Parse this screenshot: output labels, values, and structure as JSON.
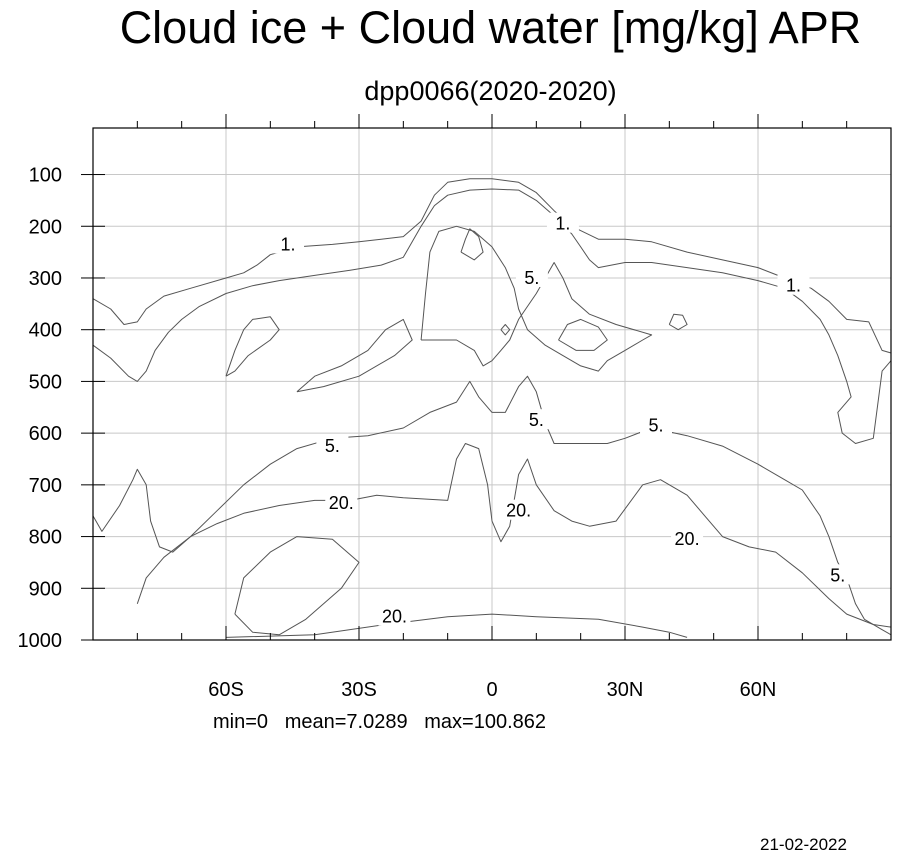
{
  "title": "Cloud ice + Cloud water [mg/kg] APR",
  "subtitle": "dpp0066(2020-2020)",
  "stats": "min=0   mean=7.0289   max=100.862",
  "date": "21-02-2022",
  "colors": {
    "axis": "#000000",
    "grid": "#c8c8c8",
    "contour": "#555555"
  },
  "chart_data": {
    "type": "contour",
    "title": "Cloud ice + Cloud water [mg/kg] APR",
    "subtitle": "dpp0066(2020-2020)",
    "xlabel": "",
    "ylabel": "",
    "x_range": [
      -90,
      90
    ],
    "y_range": [
      1000,
      10
    ],
    "y_axis_reversed": true,
    "grid": true,
    "x_ticks": [
      {
        "value": -60,
        "label": "60S"
      },
      {
        "value": -30,
        "label": "30S"
      },
      {
        "value": 0,
        "label": "0"
      },
      {
        "value": 30,
        "label": "30N"
      },
      {
        "value": 60,
        "label": "60N"
      }
    ],
    "x_minor_ticks": [
      -80,
      -70,
      -50,
      -40,
      -20,
      -10,
      10,
      20,
      40,
      50,
      70,
      80
    ],
    "y_ticks": [
      {
        "value": 100,
        "label": "100"
      },
      {
        "value": 200,
        "label": "200"
      },
      {
        "value": 300,
        "label": "300"
      },
      {
        "value": 400,
        "label": "400"
      },
      {
        "value": 500,
        "label": "500"
      },
      {
        "value": 600,
        "label": "600"
      },
      {
        "value": 700,
        "label": "700"
      },
      {
        "value": 800,
        "label": "800"
      },
      {
        "value": 900,
        "label": "900"
      },
      {
        "value": 1000,
        "label": "1000"
      }
    ],
    "contour_labels": [
      {
        "text": "1.",
        "x": -46,
        "y": 235
      },
      {
        "text": "1.",
        "x": 16,
        "y": 195
      },
      {
        "text": "1.",
        "x": 68,
        "y": 315
      },
      {
        "text": "5.",
        "x": 9,
        "y": 300
      },
      {
        "text": "5.",
        "x": -36,
        "y": 625
      },
      {
        "text": "5.",
        "x": 10,
        "y": 575
      },
      {
        "text": "5.",
        "x": 37,
        "y": 585
      },
      {
        "text": "5.",
        "x": 78,
        "y": 875
      },
      {
        "text": "20.",
        "x": -34,
        "y": 735
      },
      {
        "text": "20.",
        "x": 6,
        "y": 750
      },
      {
        "text": "20.",
        "x": 44,
        "y": 805
      },
      {
        "text": "20.",
        "x": -22,
        "y": 955
      }
    ],
    "contours": [
      {
        "level": 1,
        "points": [
          [
            -90,
            340
          ],
          [
            -86,
            360
          ],
          [
            -83,
            390
          ],
          [
            -80,
            385
          ],
          [
            -78,
            360
          ],
          [
            -74,
            335
          ],
          [
            -68,
            320
          ],
          [
            -60,
            300
          ],
          [
            -56,
            290
          ],
          [
            -53,
            275
          ],
          [
            -50,
            255
          ],
          [
            -44,
            240
          ],
          [
            -36,
            235
          ],
          [
            -30,
            230
          ],
          [
            -25,
            225
          ],
          [
            -20,
            220
          ],
          [
            -16,
            190
          ],
          [
            -13,
            140
          ],
          [
            -10,
            115
          ],
          [
            -5,
            108
          ],
          [
            0,
            108
          ],
          [
            6,
            115
          ],
          [
            10,
            135
          ],
          [
            14,
            170
          ],
          [
            18,
            200
          ],
          [
            24,
            225
          ],
          [
            30,
            225
          ],
          [
            36,
            230
          ],
          [
            44,
            250
          ],
          [
            52,
            265
          ],
          [
            60,
            280
          ],
          [
            66,
            300
          ],
          [
            72,
            320
          ],
          [
            76,
            345
          ],
          [
            80,
            380
          ],
          [
            85,
            385
          ],
          [
            88,
            440
          ],
          [
            90,
            445
          ]
        ]
      },
      {
        "level": 1,
        "points": [
          [
            -90,
            430
          ],
          [
            -86,
            455
          ],
          [
            -82,
            490
          ],
          [
            -80,
            500
          ],
          [
            -78,
            480
          ],
          [
            -76,
            440
          ],
          [
            -73,
            405
          ],
          [
            -70,
            380
          ],
          [
            -66,
            355
          ],
          [
            -60,
            330
          ],
          [
            -54,
            315
          ],
          [
            -48,
            305
          ],
          [
            -40,
            295
          ],
          [
            -32,
            285
          ],
          [
            -25,
            275
          ],
          [
            -20,
            260
          ],
          [
            -18,
            230
          ],
          [
            -16,
            200
          ],
          [
            -13,
            160
          ],
          [
            -10,
            140
          ],
          [
            -5,
            130
          ],
          [
            0,
            128
          ],
          [
            6,
            130
          ],
          [
            10,
            150
          ],
          [
            14,
            180
          ],
          [
            18,
            215
          ],
          [
            20,
            240
          ],
          [
            22,
            265
          ],
          [
            24,
            280
          ],
          [
            30,
            270
          ],
          [
            36,
            270
          ],
          [
            44,
            280
          ],
          [
            52,
            290
          ],
          [
            60,
            305
          ],
          [
            66,
            320
          ],
          [
            70,
            345
          ],
          [
            74,
            380
          ],
          [
            76,
            410
          ],
          [
            78,
            450
          ],
          [
            80,
            500
          ],
          [
            81,
            530
          ],
          [
            78,
            560
          ],
          [
            79,
            600
          ],
          [
            82,
            620
          ],
          [
            86,
            610
          ],
          [
            88,
            480
          ],
          [
            90,
            460
          ]
        ]
      },
      {
        "level": 5,
        "points": [
          [
            -90,
            760
          ],
          [
            -88,
            790
          ],
          [
            -84,
            740
          ],
          [
            -81,
            690
          ],
          [
            -80,
            670
          ],
          [
            -78,
            700
          ],
          [
            -77,
            770
          ],
          [
            -75,
            820
          ],
          [
            -72,
            830
          ],
          [
            -68,
            800
          ],
          [
            -62,
            750
          ],
          [
            -56,
            700
          ],
          [
            -50,
            660
          ],
          [
            -44,
            630
          ],
          [
            -36,
            610
          ],
          [
            -28,
            605
          ],
          [
            -20,
            590
          ],
          [
            -14,
            560
          ],
          [
            -8,
            540
          ],
          [
            -5,
            500
          ],
          [
            -3,
            530
          ],
          [
            0,
            560
          ],
          [
            3,
            560
          ],
          [
            6,
            510
          ],
          [
            8,
            490
          ],
          [
            10,
            520
          ],
          [
            12,
            580
          ],
          [
            14,
            620
          ],
          [
            18,
            620
          ],
          [
            22,
            620
          ],
          [
            26,
            620
          ],
          [
            30,
            610
          ],
          [
            36,
            590
          ],
          [
            44,
            605
          ],
          [
            52,
            625
          ],
          [
            60,
            660
          ],
          [
            66,
            690
          ],
          [
            70,
            710
          ],
          [
            74,
            760
          ],
          [
            76,
            800
          ],
          [
            78,
            850
          ],
          [
            80,
            880
          ],
          [
            82,
            930
          ],
          [
            84,
            960
          ],
          [
            88,
            980
          ],
          [
            90,
            990
          ]
        ]
      },
      {
        "level": 20,
        "points": [
          [
            -80,
            930
          ],
          [
            -78,
            880
          ],
          [
            -74,
            840
          ],
          [
            -68,
            800
          ],
          [
            -62,
            775
          ],
          [
            -56,
            755
          ],
          [
            -48,
            740
          ],
          [
            -40,
            730
          ],
          [
            -32,
            730
          ],
          [
            -26,
            720
          ],
          [
            -20,
            725
          ],
          [
            -10,
            730
          ],
          [
            -8,
            650
          ],
          [
            -6,
            620
          ],
          [
            -3,
            630
          ],
          [
            -1,
            700
          ],
          [
            0,
            770
          ],
          [
            2,
            810
          ],
          [
            4,
            780
          ],
          [
            6,
            680
          ],
          [
            8,
            650
          ],
          [
            10,
            700
          ],
          [
            14,
            750
          ],
          [
            18,
            770
          ],
          [
            22,
            780
          ],
          [
            28,
            770
          ],
          [
            34,
            700
          ],
          [
            38,
            690
          ],
          [
            44,
            720
          ],
          [
            48,
            760
          ],
          [
            52,
            800
          ],
          [
            58,
            820
          ],
          [
            64,
            830
          ],
          [
            70,
            870
          ],
          [
            76,
            920
          ],
          [
            80,
            950
          ],
          [
            86,
            970
          ],
          [
            90,
            975
          ]
        ]
      },
      {
        "level": 20,
        "points": [
          [
            -58,
            950
          ],
          [
            -56,
            880
          ],
          [
            -50,
            830
          ],
          [
            -44,
            800
          ],
          [
            -36,
            805
          ],
          [
            -30,
            850
          ],
          [
            -34,
            900
          ],
          [
            -42,
            960
          ],
          [
            -48,
            990
          ],
          [
            -54,
            985
          ],
          [
            -58,
            950
          ]
        ]
      },
      {
        "level": 20,
        "points": [
          [
            -60,
            995
          ],
          [
            -40,
            990
          ],
          [
            -24,
            970
          ],
          [
            -10,
            955
          ],
          [
            0,
            950
          ],
          [
            10,
            955
          ],
          [
            24,
            960
          ],
          [
            34,
            975
          ],
          [
            40,
            985
          ],
          [
            44,
            995
          ]
        ]
      },
      {
        "level": 5,
        "points": [
          [
            -60,
            490
          ],
          [
            -58,
            440
          ],
          [
            -56,
            400
          ],
          [
            -54,
            380
          ],
          [
            -50,
            375
          ],
          [
            -48,
            400
          ],
          [
            -50,
            420
          ],
          [
            -55,
            450
          ],
          [
            -58,
            480
          ],
          [
            -60,
            490
          ]
        ]
      },
      {
        "level": 5,
        "points": [
          [
            -44,
            520
          ],
          [
            -40,
            490
          ],
          [
            -34,
            470
          ],
          [
            -28,
            440
          ],
          [
            -24,
            400
          ],
          [
            -20,
            380
          ],
          [
            -18,
            420
          ],
          [
            -22,
            450
          ],
          [
            -30,
            490
          ],
          [
            -38,
            510
          ],
          [
            -44,
            520
          ]
        ]
      },
      {
        "level": 5,
        "points": [
          [
            -16,
            420
          ],
          [
            -15,
            330
          ],
          [
            -14,
            250
          ],
          [
            -12,
            210
          ],
          [
            -8,
            200
          ],
          [
            -4,
            210
          ],
          [
            0,
            240
          ],
          [
            3,
            280
          ],
          [
            5,
            320
          ],
          [
            6,
            360
          ],
          [
            8,
            400
          ],
          [
            12,
            430
          ],
          [
            16,
            450
          ],
          [
            20,
            470
          ],
          [
            24,
            480
          ],
          [
            26,
            460
          ],
          [
            30,
            440
          ],
          [
            34,
            420
          ],
          [
            36,
            410
          ],
          [
            28,
            390
          ],
          [
            22,
            370
          ],
          [
            18,
            340
          ],
          [
            16,
            300
          ],
          [
            14,
            270
          ],
          [
            12,
            300
          ],
          [
            10,
            330
          ],
          [
            6,
            380
          ],
          [
            4,
            420
          ],
          [
            2,
            440
          ],
          [
            0,
            460
          ],
          [
            -2,
            470
          ],
          [
            -4,
            440
          ],
          [
            -8,
            420
          ],
          [
            -12,
            420
          ],
          [
            -16,
            420
          ]
        ]
      },
      {
        "level": 20,
        "points": [
          [
            -7,
            250
          ],
          [
            -6,
            225
          ],
          [
            -5,
            205
          ],
          [
            -3,
            220
          ],
          [
            -2,
            250
          ],
          [
            -4,
            265
          ],
          [
            -7,
            250
          ]
        ]
      },
      {
        "level": 5,
        "points": [
          [
            15,
            420
          ],
          [
            17,
            390
          ],
          [
            20,
            380
          ],
          [
            24,
            395
          ],
          [
            26,
            420
          ],
          [
            23,
            440
          ],
          [
            19,
            440
          ],
          [
            15,
            420
          ]
        ]
      },
      {
        "level": 5,
        "points": [
          [
            40,
            390
          ],
          [
            41,
            370
          ],
          [
            43,
            372
          ],
          [
            44,
            390
          ],
          [
            42,
            400
          ],
          [
            40,
            390
          ]
        ]
      },
      {
        "level": 5,
        "points": [
          [
            2,
            400
          ],
          [
            3,
            390
          ],
          [
            4,
            400
          ],
          [
            3,
            410
          ],
          [
            2,
            400
          ]
        ]
      }
    ]
  }
}
